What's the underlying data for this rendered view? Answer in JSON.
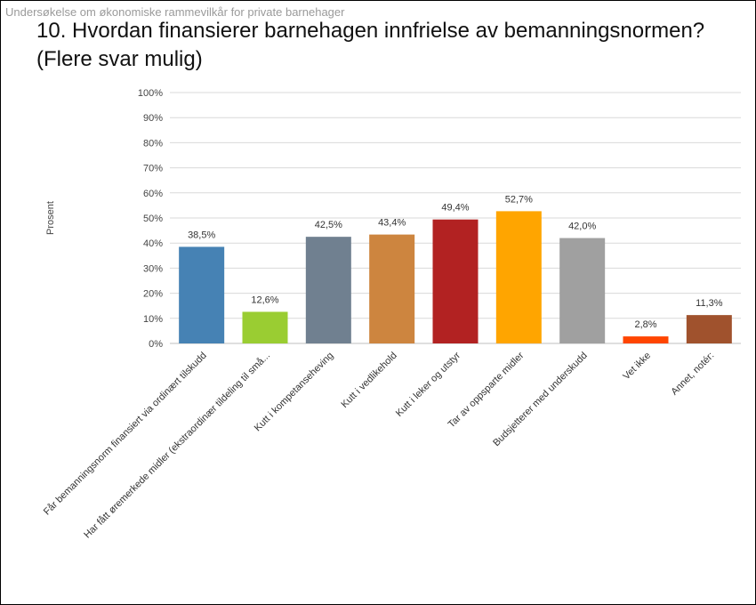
{
  "header": {
    "text": "Undersøkelse om økonomiske rammevilkår for private barnehager"
  },
  "chart_data": {
    "type": "bar",
    "title": "10. Hvordan finansierer barnehagen innfrielse av bemanningsnormen? (Flere svar mulig)",
    "ylabel": "Prosent",
    "xlabel": "",
    "ylim": [
      0,
      100
    ],
    "y_ticks": [
      "0%",
      "10%",
      "20%",
      "30%",
      "40%",
      "50%",
      "60%",
      "70%",
      "80%",
      "90%",
      "100%"
    ],
    "grid": true,
    "categories": [
      "Får bemanningsnorm finansiert via ordinært tilskudd",
      "Har fått øremerkede midler (ekstraordinær tildeling til små...",
      "Kutt i kompetanseheving",
      "Kutt i vedlikehold",
      "Kutt i leker og utstyr",
      "Tar av oppsparte midler",
      "Budsjetterer med underskudd",
      "Vet ikke",
      "Annet, notér:"
    ],
    "values": [
      38.5,
      12.6,
      42.5,
      43.4,
      49.4,
      52.7,
      42.0,
      2.8,
      11.3
    ],
    "value_labels": [
      "38,5%",
      "12,6%",
      "42,5%",
      "43,4%",
      "49,4%",
      "52,7%",
      "42,0%",
      "2,8%",
      "11,3%"
    ],
    "colors": [
      "#4682B4",
      "#9ACD32",
      "#708090",
      "#CD853F",
      "#B22222",
      "#FFA500",
      "#A0A0A0",
      "#FF4500",
      "#A0522D"
    ]
  }
}
